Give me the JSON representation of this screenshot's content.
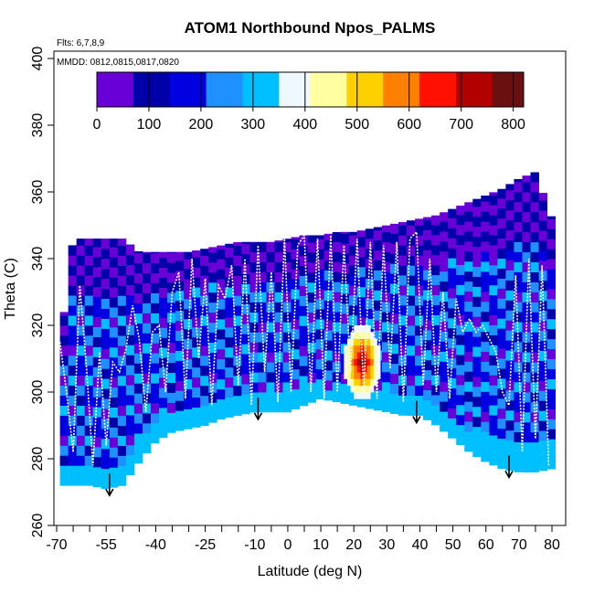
{
  "chart_data": {
    "type": "heatmap",
    "title": "ATOM1 Northbound Npos_PALMS",
    "annotations": {
      "flights": "Flts: 6,7,8,9",
      "dates": "MMDD: 0812,0815,0817,0820"
    },
    "xlabel": "Latitude (deg N)",
    "ylabel": "Theta (C)",
    "xlim": [
      -70,
      80
    ],
    "ylim": [
      260,
      400
    ],
    "x_ticks": [
      -70,
      -55,
      -40,
      -25,
      -10,
      0,
      10,
      20,
      30,
      40,
      50,
      60,
      70,
      80
    ],
    "y_ticks": [
      260,
      280,
      300,
      320,
      340,
      360,
      380,
      400
    ],
    "colorbar": {
      "range": [
        0,
        820
      ],
      "ticks": [
        0,
        100,
        200,
        300,
        400,
        500,
        600,
        700,
        800
      ],
      "colors": [
        "#6a00d8",
        "#0000a8",
        "#0000e0",
        "#1e90ff",
        "#00bfff",
        "#f0f8ff",
        "#ffffa0",
        "#ffd000",
        "#ff8000",
        "#ff1000",
        "#b00000",
        "#6a1010"
      ]
    },
    "coverage": {
      "x": [
        -69,
        -65,
        -60,
        -55,
        -50,
        -45,
        -40,
        -35,
        -30,
        -25,
        -20,
        -15,
        -10,
        -5,
        0,
        5,
        10,
        15,
        20,
        25,
        30,
        35,
        40,
        45,
        50,
        55,
        60,
        65,
        70,
        75,
        80
      ],
      "theta_min": [
        272,
        272,
        272,
        271,
        272,
        279,
        285,
        288,
        289,
        290,
        292,
        293,
        294,
        294,
        294,
        296,
        298,
        297,
        296,
        295,
        294,
        293,
        293,
        290,
        286,
        282,
        279,
        277,
        276,
        276,
        277
      ],
      "theta_max": [
        314,
        346,
        346,
        346,
        346,
        342,
        342,
        342,
        342,
        343,
        344,
        345,
        345,
        345,
        346,
        347,
        347,
        348,
        348,
        349,
        350,
        351,
        352,
        353,
        355,
        357,
        359,
        361,
        364,
        366,
        352
      ]
    },
    "high_concentration_region": {
      "x_range": [
        17,
        28
      ],
      "theta_range": [
        298,
        320
      ],
      "peak_value": 780
    },
    "arrows_latitude": [
      -54,
      -9,
      39,
      67
    ],
    "flight_tracks": [
      {
        "lat": [
          -69,
          -67,
          -65,
          -63,
          -61,
          -59,
          -57,
          -55,
          -53,
          -51,
          -49,
          -47,
          -45,
          -43,
          -41,
          -39,
          -37,
          -35,
          -33,
          -31,
          -29,
          -27,
          -25,
          -23,
          -21,
          -19,
          -17,
          -15,
          -13,
          -11,
          -9,
          -7,
          -5,
          -3,
          -1,
          1,
          3,
          5,
          7,
          9,
          11,
          13,
          15,
          17,
          19,
          21,
          23,
          25,
          27,
          29,
          31,
          33,
          35,
          37,
          39,
          41,
          43,
          45,
          47,
          49,
          51,
          53,
          55,
          57,
          59,
          61,
          63,
          65,
          67,
          69,
          71,
          73,
          75,
          77,
          79
        ],
        "theta": [
          315,
          300,
          282,
          332,
          308,
          278,
          312,
          284,
          309,
          306,
          313,
          326,
          316,
          294,
          318,
          320,
          300,
          330,
          336,
          298,
          340,
          310,
          334,
          296,
          332,
          328,
          338,
          302,
          340,
          296,
          344,
          306,
          336,
          297,
          346,
          300,
          344,
          347,
          300,
          346,
          298,
          347,
          300,
          344,
          306,
          346,
          300,
          345,
          298,
          344,
          307,
          345,
          297,
          346,
          348,
          302,
          340,
          300,
          330,
          298,
          328,
          318,
          322,
          318,
          320,
          316,
          312,
          300,
          296,
          335,
          282,
          340,
          286,
          338,
          278
        ]
      }
    ]
  }
}
